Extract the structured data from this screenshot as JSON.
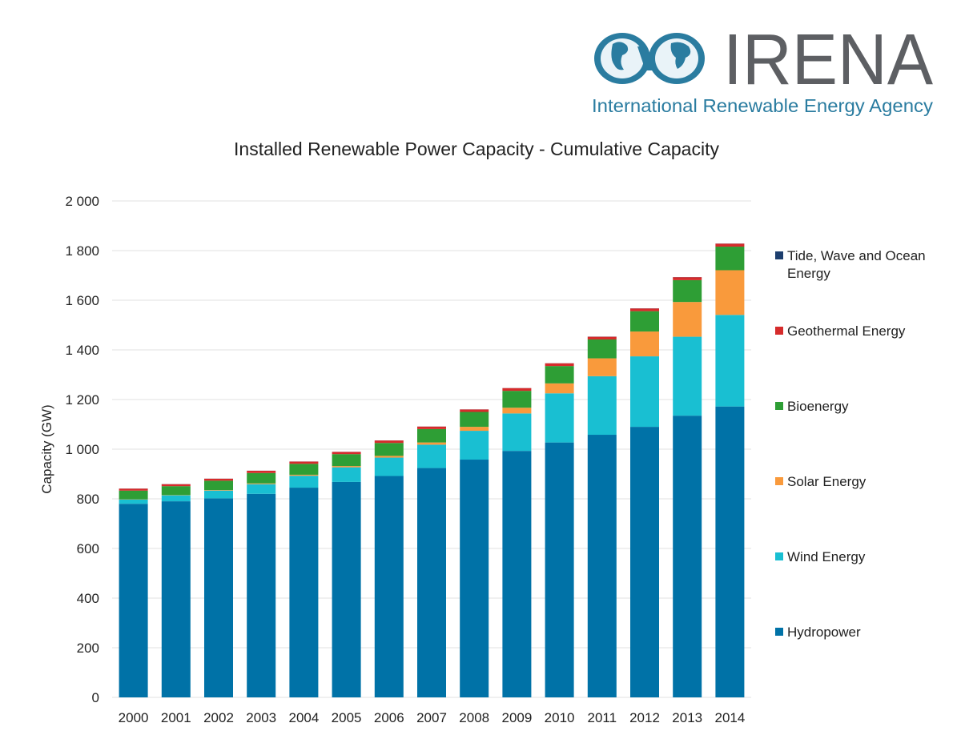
{
  "logo": {
    "name": "IRENA",
    "subtitle": "International Renewable Energy Agency",
    "colors": {
      "ring": "#2a7ca0",
      "text": "#5d5f63"
    }
  },
  "chart_data": {
    "type": "bar",
    "stacked": true,
    "title": "Installed Renewable Power Capacity - Cumulative Capacity",
    "xlabel": "",
    "ylabel": "Capacity (GW)",
    "ylim": [
      0,
      2000
    ],
    "yticks": [
      0,
      200,
      400,
      600,
      800,
      1000,
      1200,
      1400,
      1600,
      1800,
      2000
    ],
    "ytick_labels": [
      "0",
      "200",
      "400",
      "600",
      "800",
      "1 000",
      "1 200",
      "1 400",
      "1 600",
      "1 800",
      "2 000"
    ],
    "grid": true,
    "legend_position": "right",
    "categories": [
      "2000",
      "2001",
      "2002",
      "2003",
      "2004",
      "2005",
      "2006",
      "2007",
      "2008",
      "2009",
      "2010",
      "2011",
      "2012",
      "2013",
      "2014"
    ],
    "series": [
      {
        "name": "Hydropower",
        "color": "#0072a7",
        "values": [
          780,
          790,
          802,
          820,
          845,
          868,
          892,
          924,
          958,
          993,
          1027,
          1058,
          1090,
          1135,
          1172
        ]
      },
      {
        "name": "Wind Energy",
        "color": "#19bfd2",
        "values": [
          17,
          24,
          31,
          39,
          48,
          59,
          74,
          94,
          116,
          151,
          198,
          236,
          284,
          318,
          369
        ]
      },
      {
        "name": "Solar Energy",
        "color": "#f99a3c",
        "values": [
          1,
          1,
          2,
          3,
          4,
          5,
          7,
          9,
          16,
          23,
          40,
          72,
          100,
          140,
          180
        ]
      },
      {
        "name": "Bioenergy",
        "color": "#2e9e35",
        "values": [
          35,
          36,
          38,
          42,
          44,
          48,
          52,
          54,
          60,
          68,
          70,
          76,
          82,
          88,
          95
        ]
      },
      {
        "name": "Geothermal Energy",
        "color": "#d62b2b",
        "values": [
          8,
          8,
          8,
          9,
          9,
          9,
          10,
          10,
          10,
          11,
          11,
          11,
          11,
          12,
          12
        ]
      },
      {
        "name": "Tide, Wave and Ocean Energy",
        "color": "#1d3f6e",
        "values": [
          0.3,
          0.3,
          0.3,
          0.3,
          0.3,
          0.3,
          0.3,
          0.3,
          0.3,
          0.3,
          0.3,
          0.5,
          0.5,
          0.5,
          0.5
        ]
      }
    ],
    "legend_order": [
      "Tide, Wave and Ocean Energy",
      "Geothermal Energy",
      "Bioenergy",
      "Solar Energy",
      "Wind Energy",
      "Hydropower"
    ],
    "legend_lines": {
      "Tide, Wave and Ocean Energy": [
        "Tide, Wave and Ocean",
        "Energy"
      ]
    }
  }
}
